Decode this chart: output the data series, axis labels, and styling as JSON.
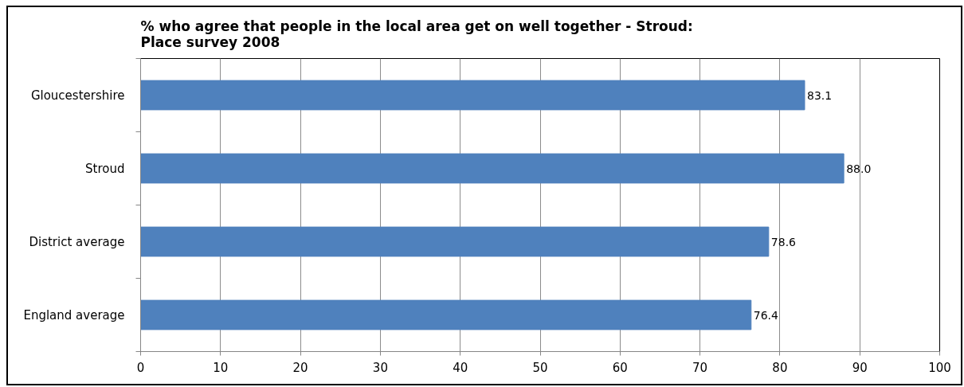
{
  "chart_data": {
    "type": "bar",
    "orientation": "horizontal",
    "title": "% who agree that people in the local area get on well together - Stroud: Place survey 2008",
    "categories": [
      "Gloucestershire",
      "Stroud",
      "District average",
      "England average"
    ],
    "values": [
      83.1,
      88.0,
      78.6,
      76.4
    ],
    "color": "#4f81bd",
    "value_labels": [
      "83.1",
      "88.0",
      "78.6",
      "76.4"
    ],
    "xlim": [
      0,
      100
    ],
    "xticks": [
      0,
      10,
      20,
      30,
      40,
      50,
      60,
      70,
      80,
      90,
      100
    ],
    "grid": "x"
  }
}
